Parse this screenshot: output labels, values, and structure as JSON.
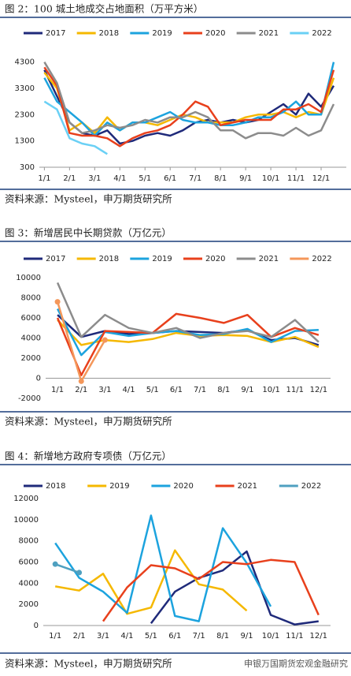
{
  "watermark": "申银万国期货宏观金融研究",
  "chart_data": [
    {
      "type": "line",
      "title": "图 2：100 城土地成交占地面积（万平方米）",
      "source": "资料来源：Mysteel，申万期货研究所",
      "x": [
        0,
        0.5,
        1,
        1.5,
        2,
        2.5,
        3,
        3.5,
        4,
        4.5,
        5,
        5.5,
        6,
        6.5,
        7,
        7.5,
        8,
        8.5,
        9,
        9.5,
        10,
        10.5,
        11,
        11.5
      ],
      "xlim": [
        -0.2,
        12
      ],
      "xticks": [
        {
          "value": 0,
          "label": "1/1"
        },
        {
          "value": 1,
          "label": "2/1"
        },
        {
          "value": 2,
          "label": "3/1"
        },
        {
          "value": 3,
          "label": "4/1"
        },
        {
          "value": 4,
          "label": "5/1"
        },
        {
          "value": 5,
          "label": "6/1"
        },
        {
          "value": 6,
          "label": "7/1"
        },
        {
          "value": 7,
          "label": "8/1"
        },
        {
          "value": 8,
          "label": "9/1"
        },
        {
          "value": 9,
          "label": "10/1"
        },
        {
          "value": 10,
          "label": "11/1"
        },
        {
          "value": 11,
          "label": "12/1"
        }
      ],
      "ylim": [
        300,
        4800
      ],
      "yticks": [
        300,
        1300,
        2300,
        3300,
        4300
      ],
      "series": [
        {
          "name": "2017",
          "color": "#1f2a7a",
          "values": [
            4000,
            3000,
            2000,
            1600,
            1500,
            1700,
            1200,
            1300,
            1500,
            1600,
            1500,
            1700,
            2000,
            2100,
            2000,
            2100,
            2000,
            2100,
            2400,
            2700,
            2300,
            3100,
            2600,
            3400
          ]
        },
        {
          "name": "2018",
          "color": "#f5b800",
          "values": [
            3900,
            3300,
            1700,
            2000,
            1600,
            2200,
            1700,
            2000,
            2000,
            1900,
            2100,
            2300,
            2200,
            2000,
            2000,
            2000,
            2200,
            2300,
            2300,
            2400,
            2200,
            2400,
            2300,
            3700
          ]
        },
        {
          "name": "2019",
          "color": "#1ca3de",
          "values": [
            3700,
            2800,
            2400,
            2000,
            1500,
            2000,
            1700,
            2000,
            2000,
            2200,
            2400,
            2100,
            2000,
            2000,
            1900,
            1900,
            2000,
            2200,
            2200,
            2400,
            2800,
            2300,
            2300,
            4300
          ]
        },
        {
          "name": "2020",
          "color": "#e8401c",
          "values": [
            4100,
            3400,
            1600,
            1500,
            1500,
            1400,
            1100,
            1400,
            1600,
            1700,
            1900,
            2300,
            2800,
            2600,
            1900,
            2000,
            2100,
            2100,
            2100,
            2500,
            2500,
            2700,
            2400,
            4000
          ]
        },
        {
          "name": "2021",
          "color": "#8c8c8c",
          "values": [
            4300,
            3500,
            2000,
            1600,
            1700,
            1900,
            1800,
            1900,
            2100,
            2000,
            2200,
            2200,
            2400,
            2200,
            1700,
            1700,
            1400,
            1600,
            1600,
            1500,
            1800,
            1500,
            1700,
            2700
          ]
        },
        {
          "name": "2022",
          "color": "#6ad0f5",
          "values": [
            2800,
            2500,
            1400,
            1200,
            1100,
            800,
            null,
            null,
            null,
            null,
            null,
            null,
            null,
            null,
            null,
            null,
            null,
            null,
            null,
            null,
            null,
            null,
            null,
            null
          ]
        }
      ]
    },
    {
      "type": "line",
      "title": "图 3：新增居民中长期贷款（万亿元）",
      "source": "资料来源：Mysteel，申万期货研究所",
      "categories": [
        "1/1",
        "2/1",
        "3/1",
        "4/1",
        "5/1",
        "6/1",
        "7/1",
        "8/1",
        "9/1",
        "10/1",
        "11/1",
        "12/1"
      ],
      "ylim": [
        -2000,
        10000
      ],
      "yticks": [
        -2000,
        0,
        2000,
        4000,
        6000,
        8000,
        10000
      ],
      "series": [
        {
          "name": "2017",
          "color": "#1f2a7a",
          "values": [
            6300,
            4100,
            4700,
            4400,
            4500,
            4700,
            4600,
            4500,
            4800,
            3800,
            4000,
            3300
          ]
        },
        {
          "name": "2018",
          "color": "#f5b800",
          "values": [
            5800,
            3300,
            3800,
            3600,
            3900,
            4500,
            4200,
            4300,
            4200,
            3600,
            4100,
            3100
          ]
        },
        {
          "name": "2019",
          "color": "#1ca3de",
          "values": [
            6900,
            2300,
            4600,
            4200,
            4500,
            4700,
            4300,
            4400,
            4900,
            3600,
            4700,
            4800
          ]
        },
        {
          "name": "2020",
          "color": "#e8401c",
          "values": [
            6000,
            300,
            4700,
            4600,
            4500,
            6400,
            6000,
            5500,
            6300,
            4100,
            5000,
            4300
          ]
        },
        {
          "name": "2021",
          "color": "#8c8c8c",
          "values": [
            9500,
            4100,
            6300,
            5000,
            4500,
            5000,
            4000,
            4500,
            4700,
            4100,
            5800,
            3600
          ]
        },
        {
          "name": "2022",
          "color": "#f4975a",
          "markers": true,
          "values": [
            7600,
            -300,
            3800,
            null,
            null,
            null,
            null,
            null,
            null,
            null,
            null,
            null
          ]
        }
      ]
    },
    {
      "type": "line",
      "title": "图 4：新增地方政府专项债（万亿元）",
      "source": "资料来源：Mysteel，申万期货研究所",
      "categories": [
        "1/1",
        "2/1",
        "3/1",
        "4/1",
        "5/1",
        "6/1",
        "7/1",
        "8/1",
        "9/1",
        "10/1",
        "11/1",
        "12/1"
      ],
      "ylim": [
        0,
        12000
      ],
      "yticks": [
        0,
        2000,
        4000,
        6000,
        8000,
        10000,
        12000
      ],
      "series": [
        {
          "name": "2018",
          "color": "#1f2a7a",
          "values": [
            null,
            null,
            null,
            null,
            200,
            3200,
            4500,
            5200,
            7000,
            1000,
            100,
            400
          ]
        },
        {
          "name": "2019",
          "color": "#f5b800",
          "values": [
            3700,
            3300,
            4900,
            1100,
            1700,
            7100,
            3900,
            3400,
            1400,
            null,
            null,
            null
          ]
        },
        {
          "name": "2020",
          "color": "#1ca3de",
          "values": [
            7800,
            4500,
            3200,
            1200,
            10400,
            900,
            400,
            9200,
            5900,
            1800,
            null,
            null
          ]
        },
        {
          "name": "2021",
          "color": "#e8401c",
          "values": [
            null,
            null,
            400,
            3600,
            5700,
            5400,
            4400,
            6000,
            5800,
            6200,
            6000,
            1000
          ]
        },
        {
          "name": "2022",
          "color": "#4fa0c0",
          "markers": true,
          "values": [
            5800,
            5000,
            null,
            null,
            null,
            null,
            null,
            null,
            null,
            null,
            null,
            null
          ]
        }
      ]
    }
  ]
}
